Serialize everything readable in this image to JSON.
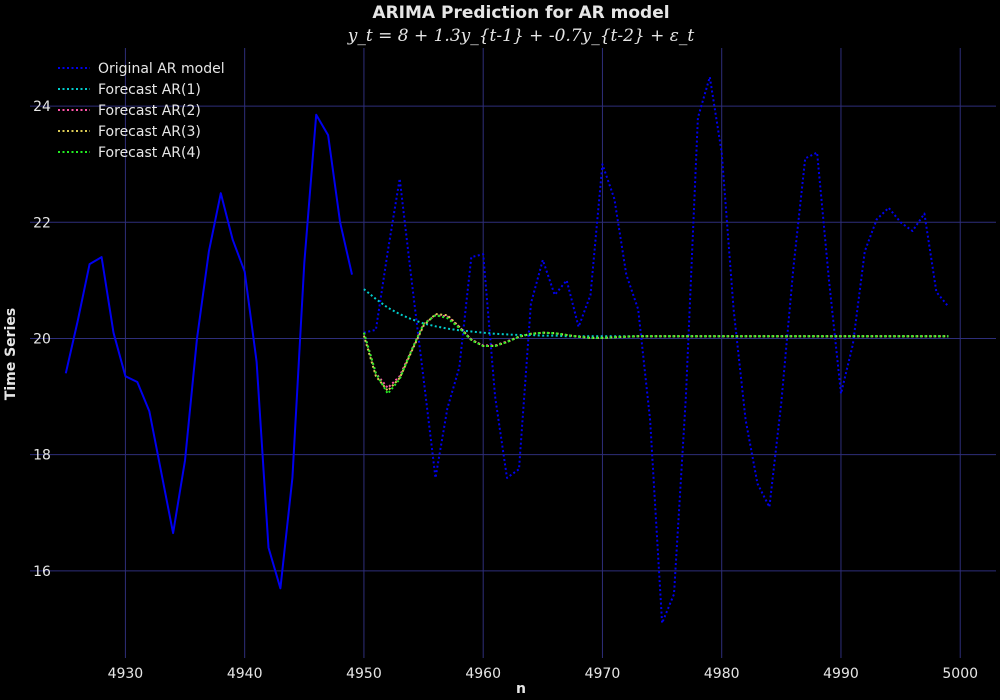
{
  "chart_data": {
    "type": "line",
    "title": "ARIMA Prediction for AR model",
    "subtitle": "y_t = 8 + 1.3y_{t-1} + -0.7y_{t-2} + ε_t",
    "xlabel": "n",
    "ylabel": "Time Series",
    "xlim": [
      4922,
      5003
    ],
    "ylim": [
      14.5,
      25.0
    ],
    "xticks": [
      4930,
      4940,
      4950,
      4960,
      4970,
      4980,
      4990,
      5000
    ],
    "yticks": [
      16,
      18,
      20,
      22,
      24
    ],
    "grid": true,
    "legend_position": "top-left",
    "series": [
      {
        "name": "Original AR model",
        "color": "#0000ee",
        "style": "solid",
        "x": [
          4925,
          4926,
          4927,
          4928,
          4929,
          4930,
          4931,
          4932,
          4933,
          4934,
          4935,
          4936,
          4937,
          4938,
          4939,
          4940,
          4941,
          4942,
          4943,
          4944,
          4945,
          4946,
          4947,
          4948,
          4949
        ],
        "values": [
          19.4,
          20.3,
          21.28,
          21.4,
          20.1,
          19.35,
          19.25,
          18.75,
          17.7,
          16.65,
          17.9,
          20.0,
          21.5,
          22.5,
          21.7,
          21.15,
          19.6,
          16.4,
          15.7,
          17.6,
          21.3,
          23.85,
          23.5,
          22.0,
          21.1
        ]
      },
      {
        "name": "",
        "color": "#0000ee",
        "style": "dotted",
        "x": [
          4950,
          4951,
          4952,
          4953,
          4954,
          4955,
          4956,
          4957,
          4958,
          4959,
          4960,
          4961,
          4962,
          4963,
          4964,
          4965,
          4966,
          4967,
          4968,
          4969,
          4970,
          4971,
          4972,
          4973,
          4974,
          4975,
          4976,
          4977,
          4978,
          4979,
          4980,
          4981,
          4982,
          4983,
          4984,
          4985,
          4986,
          4987,
          4988,
          4989,
          4990,
          4991,
          4992,
          4993,
          4994,
          4995,
          4996,
          4997,
          4998,
          4999
        ],
        "values": [
          20.1,
          20.15,
          21.5,
          22.75,
          21.0,
          19.3,
          17.6,
          18.8,
          19.5,
          21.4,
          21.45,
          19.0,
          17.6,
          17.75,
          20.6,
          21.35,
          20.75,
          21.0,
          20.2,
          20.75,
          23.0,
          22.4,
          21.1,
          20.5,
          18.6,
          15.1,
          15.6,
          19.0,
          23.8,
          24.5,
          23.2,
          20.5,
          18.6,
          17.5,
          17.1,
          18.9,
          21.2,
          23.1,
          23.2,
          21.0,
          19.05,
          19.9,
          21.5,
          22.05,
          22.25,
          22.0,
          21.85,
          22.15,
          20.8,
          20.55
        ]
      },
      {
        "name": "Forecast AR(1)",
        "color": "#00cccc",
        "style": "dotted",
        "x": [
          4950,
          4951,
          4952,
          4953,
          4954,
          4955,
          4956,
          4957,
          4958,
          4959,
          4960,
          4961,
          4962,
          4963,
          4964,
          4965,
          4966,
          4967,
          4968,
          4969,
          4970,
          4971,
          4972,
          4973,
          4974,
          4975,
          4976,
          4977,
          4978,
          4979,
          4980,
          4981,
          4982,
          4983,
          4984,
          4985,
          4986,
          4987,
          4988,
          4989,
          4990,
          4991,
          4992,
          4993,
          4994,
          4995,
          4996,
          4997,
          4998,
          4999
        ],
        "values": [
          20.85,
          20.68,
          20.53,
          20.42,
          20.33,
          20.26,
          20.21,
          20.17,
          20.14,
          20.12,
          20.1,
          20.08,
          20.07,
          20.06,
          20.06,
          20.05,
          20.05,
          20.04,
          20.04,
          20.04,
          20.04,
          20.04,
          20.04,
          20.04,
          20.04,
          20.04,
          20.04,
          20.04,
          20.04,
          20.04,
          20.04,
          20.04,
          20.04,
          20.04,
          20.04,
          20.04,
          20.04,
          20.04,
          20.04,
          20.04,
          20.04,
          20.04,
          20.04,
          20.04,
          20.04,
          20.04,
          20.04,
          20.04,
          20.04,
          20.04
        ]
      },
      {
        "name": "Forecast AR(2)",
        "color": "#ff55aa",
        "style": "dotted",
        "x": [
          4950,
          4951,
          4952,
          4953,
          4954,
          4955,
          4956,
          4957,
          4958,
          4959,
          4960,
          4961,
          4962,
          4963,
          4964,
          4965,
          4966,
          4967,
          4968,
          4969,
          4970,
          4971,
          4972,
          4973,
          4974,
          4975,
          4976,
          4977,
          4978,
          4979,
          4980,
          4981,
          4982,
          4983,
          4984,
          4985,
          4986,
          4987,
          4988,
          4989,
          4990,
          4991,
          4992,
          4993,
          4994,
          4995,
          4996,
          4997,
          4998,
          4999
        ],
        "values": [
          20.1,
          19.4,
          19.15,
          19.35,
          19.8,
          20.25,
          20.4,
          20.38,
          20.2,
          19.98,
          19.88,
          19.88,
          19.95,
          20.03,
          20.08,
          20.1,
          20.09,
          20.06,
          20.03,
          20.01,
          20.01,
          20.02,
          20.03,
          20.04,
          20.04,
          20.04,
          20.04,
          20.04,
          20.04,
          20.04,
          20.04,
          20.04,
          20.04,
          20.04,
          20.04,
          20.04,
          20.04,
          20.04,
          20.04,
          20.04,
          20.04,
          20.04,
          20.04,
          20.04,
          20.04,
          20.04,
          20.04,
          20.04,
          20.04,
          20.04
        ]
      },
      {
        "name": "Forecast AR(3)",
        "color": "#ddcc55",
        "style": "dotted",
        "x": [
          4950,
          4951,
          4952,
          4953,
          4954,
          4955,
          4956,
          4957,
          4958,
          4959,
          4960,
          4961,
          4962,
          4963,
          4964,
          4965,
          4966,
          4967,
          4968,
          4969,
          4970,
          4971,
          4972,
          4973,
          4974,
          4975,
          4976,
          4977,
          4978,
          4979,
          4980,
          4981,
          4982,
          4983,
          4984,
          4985,
          4986,
          4987,
          4988,
          4989,
          4990,
          4991,
          4992,
          4993,
          4994,
          4995,
          4996,
          4997,
          4998,
          4999
        ],
        "values": [
          20.05,
          19.35,
          19.1,
          19.32,
          19.78,
          20.22,
          20.42,
          20.4,
          20.2,
          19.98,
          19.87,
          19.87,
          19.94,
          20.03,
          20.08,
          20.1,
          20.09,
          20.06,
          20.03,
          20.01,
          20.01,
          20.02,
          20.03,
          20.04,
          20.04,
          20.04,
          20.04,
          20.04,
          20.04,
          20.04,
          20.04,
          20.04,
          20.04,
          20.04,
          20.04,
          20.04,
          20.04,
          20.04,
          20.04,
          20.04,
          20.04,
          20.04,
          20.04,
          20.04,
          20.04,
          20.04,
          20.04,
          20.04,
          20.04,
          20.04
        ]
      },
      {
        "name": "Forecast AR(4)",
        "color": "#22ee22",
        "style": "dotted",
        "x": [
          4950,
          4951,
          4952,
          4953,
          4954,
          4955,
          4956,
          4957,
          4958,
          4959,
          4960,
          4961,
          4962,
          4963,
          4964,
          4965,
          4966,
          4967,
          4968,
          4969,
          4970,
          4971,
          4972,
          4973,
          4974,
          4975,
          4976,
          4977,
          4978,
          4979,
          4980,
          4981,
          4982,
          4983,
          4984,
          4985,
          4986,
          4987,
          4988,
          4989,
          4990,
          4991,
          4992,
          4993,
          4994,
          4995,
          4996,
          4997,
          4998,
          4999
        ],
        "values": [
          20.1,
          19.4,
          19.05,
          19.3,
          19.8,
          20.25,
          20.4,
          20.35,
          20.18,
          19.97,
          19.87,
          19.87,
          19.94,
          20.03,
          20.08,
          20.1,
          20.09,
          20.06,
          20.03,
          20.01,
          20.01,
          20.02,
          20.03,
          20.04,
          20.04,
          20.04,
          20.04,
          20.04,
          20.04,
          20.04,
          20.04,
          20.04,
          20.04,
          20.04,
          20.04,
          20.04,
          20.04,
          20.04,
          20.04,
          20.04,
          20.04,
          20.04,
          20.04,
          20.04,
          20.04,
          20.04,
          20.04,
          20.04,
          20.04,
          20.04
        ]
      }
    ]
  }
}
